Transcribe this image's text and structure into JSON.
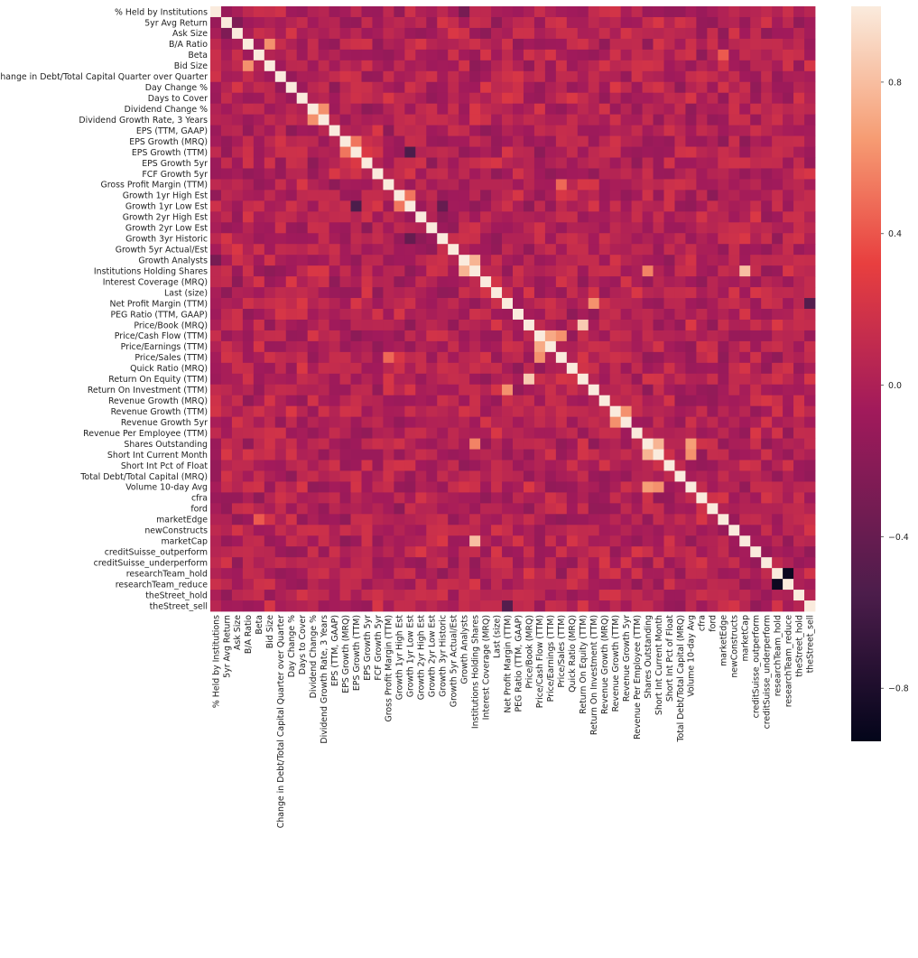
{
  "chart_data": {
    "type": "heatmap",
    "title": "",
    "xlabel": "",
    "ylabel": "",
    "labels": [
      "% Held by Institutions",
      "5yr Avg Return",
      "Ask Size",
      "B/A Ratio",
      "Beta",
      "Bid Size",
      "Change in Debt/Total Capital Quarter over Quarter",
      "Day Change %",
      "Days to Cover",
      "Dividend Change %",
      "Dividend Growth Rate, 3 Years",
      "EPS (TTM, GAAP)",
      "EPS Growth (MRQ)",
      "EPS Growth (TTM)",
      "EPS Growth 5yr",
      "FCF Growth 5yr",
      "Gross Profit Margin (TTM)",
      "Growth 1yr High Est",
      "Growth 1yr Low Est",
      "Growth 2yr High Est",
      "Growth 2yr Low Est",
      "Growth 3yr Historic",
      "Growth 5yr Actual/Est",
      "Growth Analysts",
      "Institutions Holding Shares",
      "Interest Coverage (MRQ)",
      "Last (size)",
      "Net Profit Margin (TTM)",
      "PEG Ratio (TTM, GAAP)",
      "Price/Book (MRQ)",
      "Price/Cash Flow (TTM)",
      "Price/Earnings (TTM)",
      "Price/Sales (TTM)",
      "Quick Ratio (MRQ)",
      "Return On Equity (TTM)",
      "Return On Investment (TTM)",
      "Revenue Growth (MRQ)",
      "Revenue Growth (TTM)",
      "Revenue Growth 5yr",
      "Revenue Per Employee (TTM)",
      "Shares Outstanding",
      "Short Int Current Month",
      "Short Int Pct of Float",
      "Total Debt/Total Capital (MRQ)",
      "Volume 10-day Avg",
      "cfra",
      "ford",
      "marketEdge",
      "newConstructs",
      "marketCap",
      "creditSuisse_outperform",
      "creditSuisse_underperform",
      "researchTeam_hold",
      "researchTeam_reduce",
      "theStreet_hold",
      "theStreet_sell"
    ],
    "value_range": [
      -1.0,
      1.0
    ],
    "colorbar": {
      "ticks": [
        0.8,
        0.4,
        0.0,
        -0.4,
        -0.8
      ],
      "tick_labels": [
        "0.8",
        "0.4",
        "0.0",
        "−0.4",
        "−0.8"
      ],
      "colormap": "rocket",
      "stops": [
        "#03051a",
        "#4c1d4b",
        "#a11a5b",
        "#e83f3f",
        "#f69c73",
        "#faebdd"
      ]
    },
    "notable_correlations": [
      {
        "row": "researchTeam_hold",
        "col": "researchTeam_reduce",
        "value": -0.95
      },
      {
        "row": "Growth 1yr Low Est",
        "col": "EPS Growth (TTM)",
        "value": -0.6
      },
      {
        "row": "theStreet_sell",
        "col": "Net Profit Margin (TTM)",
        "value": -0.55
      },
      {
        "row": "Growth 3yr Historic",
        "col": "Growth 1yr Low Est",
        "value": -0.45
      },
      {
        "row": "Institutions Holding Shares",
        "col": "Growth Analysts",
        "value": 0.75
      },
      {
        "row": "marketCap",
        "col": "Institutions Holding Shares",
        "value": 0.8
      },
      {
        "row": "Shares Outstanding",
        "col": "Institutions Holding Shares",
        "value": 0.55
      },
      {
        "row": "Short Int Current Month",
        "col": "Shares Outstanding",
        "value": 0.75
      },
      {
        "row": "Volume 10-day Avg",
        "col": "Shares Outstanding",
        "value": 0.65
      },
      {
        "row": "Volume 10-day Avg",
        "col": "Short Int Current Month",
        "value": 0.6
      },
      {
        "row": "Price/Sales (TTM)",
        "col": "Price/Cash Flow (TTM)",
        "value": 0.6
      },
      {
        "row": "Price/Earnings (TTM)",
        "col": "Price/Cash Flow (TTM)",
        "value": 0.7
      },
      {
        "row": "Return On Equity (TTM)",
        "col": "Price/Book (MRQ)",
        "value": 0.85
      },
      {
        "row": "Return On Investment (TTM)",
        "col": "Net Profit Margin (TTM)",
        "value": 0.6
      },
      {
        "row": "Revenue Growth 5yr",
        "col": "Revenue Growth (TTM)",
        "value": 0.6
      },
      {
        "row": "Bid Size",
        "col": "B/A Ratio",
        "value": 0.6
      },
      {
        "row": "Dividend Growth Rate, 3 Years",
        "col": "Dividend Change %",
        "value": 0.6
      },
      {
        "row": "Growth 1yr Low Est",
        "col": "Growth 1yr High Est",
        "value": 0.5
      },
      {
        "row": "EPS Growth (TTM)",
        "col": "EPS Growth (MRQ)",
        "value": 0.5
      },
      {
        "row": "Price/Sales (TTM)",
        "col": "Gross Profit Margin (TTM)",
        "value": 0.45
      },
      {
        "row": "marketEdge",
        "col": "Beta",
        "value": 0.4
      },
      {
        "row": "Ask Size",
        "col": "5yr Avg Return",
        "value": -0.3
      },
      {
        "row": "Growth Analysts",
        "col": "% Held by Institutions",
        "value": -0.35
      }
    ]
  }
}
